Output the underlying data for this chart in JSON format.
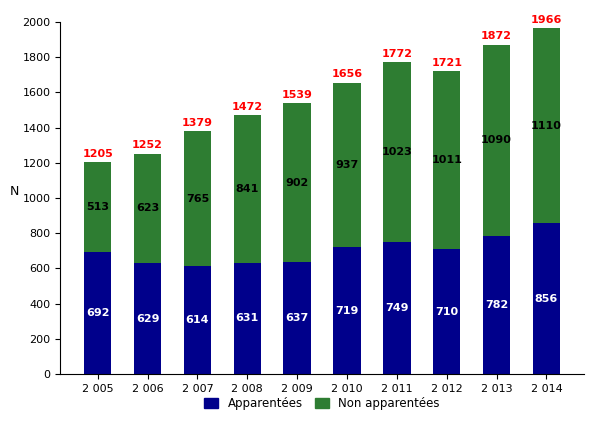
{
  "years": [
    "2 005",
    "2 006",
    "2 007",
    "2 008",
    "2 009",
    "2 010",
    "2 011",
    "2 012",
    "2 013",
    "2 014"
  ],
  "apparentees": [
    692,
    629,
    614,
    631,
    637,
    719,
    749,
    710,
    782,
    856
  ],
  "non_apparentees": [
    513,
    623,
    765,
    841,
    902,
    937,
    1023,
    1011,
    1090,
    1110
  ],
  "totals": [
    1205,
    1252,
    1379,
    1472,
    1539,
    1656,
    1772,
    1721,
    1872,
    1966
  ],
  "color_apparentees": "#00008B",
  "color_non_apparentees": "#2E7D32",
  "color_total_labels": "#FF0000",
  "color_bar_labels_blue": "#FFFFFF",
  "color_bar_labels_green": "#000000",
  "ylabel": "N",
  "ylim": [
    0,
    2000
  ],
  "yticks": [
    0,
    200,
    400,
    600,
    800,
    1000,
    1200,
    1400,
    1600,
    1800,
    2000
  ],
  "legend_apparentees": "Apparentées",
  "legend_non_apparentees": "Non apparentées",
  "bar_width": 0.55,
  "figsize": [
    6.02,
    4.4
  ],
  "dpi": 100
}
